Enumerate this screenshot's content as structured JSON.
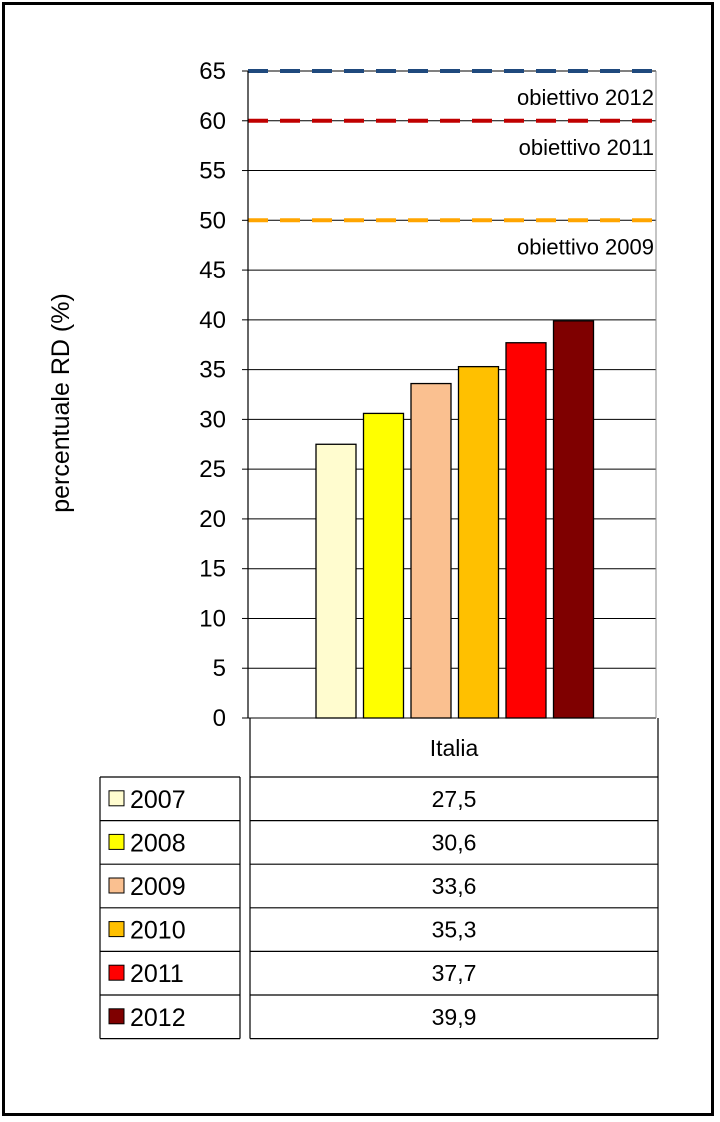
{
  "chart_data": {
    "type": "bar",
    "ylabel": "percentuale RD (%)",
    "ylim": [
      0,
      65
    ],
    "ytick_step": 5,
    "grid": true,
    "categories": [
      "Italia"
    ],
    "series": [
      {
        "name": "2007",
        "values": [
          27.5
        ],
        "label": "27,5",
        "color": "#FFFCCF"
      },
      {
        "name": "2008",
        "values": [
          30.6
        ],
        "label": "30,6",
        "color": "#FFFF00"
      },
      {
        "name": "2009",
        "values": [
          33.6
        ],
        "label": "33,6",
        "color": "#FAC090"
      },
      {
        "name": "2010",
        "values": [
          35.3
        ],
        "label": "35,3",
        "color": "#FFC000"
      },
      {
        "name": "2011",
        "values": [
          37.7
        ],
        "label": "37,7",
        "color": "#FF0000"
      },
      {
        "name": "2012",
        "values": [
          39.9
        ],
        "label": "39,9",
        "color": "#7F0000"
      }
    ],
    "targets": [
      {
        "label": "obiettivo 2012",
        "value": 65,
        "color": "#1F497D"
      },
      {
        "label": "obiettivo 2011",
        "value": 60,
        "color": "#C00000"
      },
      {
        "label": "obiettivo 2009",
        "value": 50,
        "color": "#FFA500"
      }
    ],
    "legend_placement": "data table below chart"
  }
}
